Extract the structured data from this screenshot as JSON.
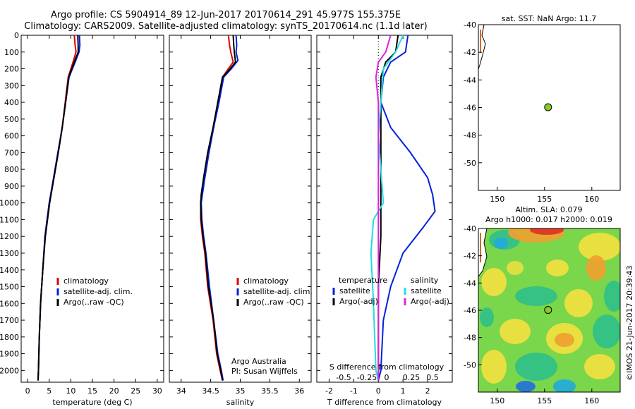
{
  "header": {
    "line1": "Argo profile: CS 5904914_89 12-Jun-2017 20170614_291 45.977S 155.375E",
    "line2": "Climatology: CARS2009. Satellite-adjusted climatology: synTS_20170614.nc (1.1d later)"
  },
  "side_stamp": "©IMOS 21-Jun-2017 20:39:43",
  "colors": {
    "climatology": "#dd0000",
    "satellite": "#0022dd",
    "argo": "#000000",
    "sat_salinity": "#22dddd",
    "argo_adj_salinity": "#dd22dd",
    "marker": "#88cc22"
  },
  "chart_data": [
    {
      "type": "line",
      "id": "temperature",
      "xlabel": "temperature (deg C)",
      "xlim": [
        -1.5,
        31.5
      ],
      "xticks": [
        0,
        5,
        10,
        15,
        20,
        25,
        30
      ],
      "ylim": [
        2070,
        0
      ],
      "yticks": [
        0,
        100,
        200,
        300,
        400,
        500,
        600,
        700,
        800,
        900,
        1000,
        1100,
        1200,
        1300,
        1400,
        1500,
        1600,
        1700,
        1800,
        1900,
        2000
      ],
      "legend": [
        "climatology",
        "satellite-adj. clim.",
        "Argo(..raw -QC)"
      ],
      "series": [
        {
          "name": "climatology",
          "color": "#dd0000",
          "points": [
            [
              10.8,
              0
            ],
            [
              11.0,
              60
            ],
            [
              11.2,
              100
            ],
            [
              10.5,
              160
            ],
            [
              9.4,
              250
            ],
            [
              8.7,
              400
            ],
            [
              8.0,
              550
            ],
            [
              7.1,
              700
            ],
            [
              6.1,
              850
            ],
            [
              5.0,
              1000
            ],
            [
              4.0,
              1200
            ],
            [
              3.5,
              1400
            ],
            [
              3.0,
              1600
            ],
            [
              2.7,
              1800
            ],
            [
              2.5,
              2000
            ],
            [
              2.4,
              2060
            ]
          ]
        },
        {
          "name": "satellite-adj. clim.",
          "color": "#0022dd",
          "points": [
            [
              12.0,
              0
            ],
            [
              12.1,
              60
            ],
            [
              11.9,
              100
            ],
            [
              11.0,
              160
            ],
            [
              9.6,
              250
            ],
            [
              8.8,
              400
            ],
            [
              8.0,
              550
            ],
            [
              7.0,
              700
            ],
            [
              6.0,
              850
            ],
            [
              5.0,
              1000
            ],
            [
              4.0,
              1200
            ],
            [
              3.5,
              1400
            ],
            [
              3.0,
              1600
            ],
            [
              2.7,
              1800
            ],
            [
              2.5,
              2000
            ],
            [
              2.4,
              2060
            ]
          ]
        },
        {
          "name": "Argo(..raw -QC)",
          "color": "#000000",
          "points": [
            [
              11.6,
              0
            ],
            [
              11.7,
              60
            ],
            [
              11.7,
              100
            ],
            [
              10.8,
              160
            ],
            [
              9.5,
              250
            ],
            [
              8.8,
              400
            ],
            [
              8.0,
              550
            ],
            [
              7.1,
              700
            ],
            [
              6.1,
              850
            ],
            [
              5.1,
              1000
            ],
            [
              4.1,
              1200
            ],
            [
              3.5,
              1400
            ],
            [
              3.0,
              1600
            ],
            [
              2.7,
              1800
            ],
            [
              2.5,
              2000
            ],
            [
              2.4,
              2060
            ]
          ]
        }
      ]
    },
    {
      "type": "line",
      "id": "salinity",
      "xlabel": "salinity",
      "xlim": [
        33.8,
        36.2
      ],
      "xticks": [
        34,
        34.5,
        35,
        35.5,
        36
      ],
      "ylim": [
        2070,
        0
      ],
      "legend": [
        "climatology",
        "satellite-adj. clim.",
        "Argo(..raw -QC)"
      ],
      "annotation": [
        "Argo Australia",
        "PI: Susan Wijffels"
      ],
      "series": [
        {
          "name": "climatology",
          "color": "#dd0000",
          "points": [
            [
              34.8,
              0
            ],
            [
              34.82,
              60
            ],
            [
              34.84,
              100
            ],
            [
              34.88,
              160
            ],
            [
              34.8,
              200
            ],
            [
              34.7,
              250
            ],
            [
              34.62,
              400
            ],
            [
              34.55,
              550
            ],
            [
              34.47,
              700
            ],
            [
              34.4,
              850
            ],
            [
              34.35,
              950
            ],
            [
              34.33,
              1000
            ],
            [
              34.33,
              1100
            ],
            [
              34.36,
              1200
            ],
            [
              34.4,
              1300
            ],
            [
              34.45,
              1500
            ],
            [
              34.54,
              1700
            ],
            [
              34.6,
              1900
            ],
            [
              34.66,
              2000
            ],
            [
              34.7,
              2060
            ]
          ]
        },
        {
          "name": "satellite-adj. clim.",
          "color": "#0022dd",
          "points": [
            [
              34.93,
              0
            ],
            [
              34.94,
              60
            ],
            [
              34.93,
              100
            ],
            [
              34.96,
              150
            ],
            [
              34.85,
              200
            ],
            [
              34.72,
              250
            ],
            [
              34.64,
              400
            ],
            [
              34.55,
              550
            ],
            [
              34.47,
              700
            ],
            [
              34.4,
              850
            ],
            [
              34.36,
              950
            ],
            [
              34.34,
              1000
            ],
            [
              34.35,
              1100
            ],
            [
              34.38,
              1200
            ],
            [
              34.42,
              1300
            ],
            [
              34.48,
              1500
            ],
            [
              34.55,
              1700
            ],
            [
              34.62,
              1900
            ],
            [
              34.68,
              2000
            ],
            [
              34.71,
              2060
            ]
          ]
        },
        {
          "name": "Argo(..raw -QC)",
          "color": "#000000",
          "points": [
            [
              34.88,
              0
            ],
            [
              34.89,
              60
            ],
            [
              34.9,
              100
            ],
            [
              34.92,
              160
            ],
            [
              34.83,
              200
            ],
            [
              34.7,
              250
            ],
            [
              34.62,
              400
            ],
            [
              34.54,
              550
            ],
            [
              34.45,
              700
            ],
            [
              34.38,
              850
            ],
            [
              34.34,
              950
            ],
            [
              34.33,
              1000
            ],
            [
              34.34,
              1100
            ],
            [
              34.37,
              1200
            ],
            [
              34.41,
              1300
            ],
            [
              34.46,
              1500
            ],
            [
              34.55,
              1700
            ],
            [
              34.61,
              1900
            ],
            [
              34.67,
              2000
            ],
            [
              34.7,
              2060
            ]
          ]
        }
      ]
    },
    {
      "type": "line",
      "id": "difference",
      "xlabel": "T difference from climatology",
      "xlabel_top": "S difference from climatology",
      "xlim": [
        -2.5,
        3.0
      ],
      "xticks": [
        -2,
        -1,
        0,
        1,
        2
      ],
      "xticks_top": [
        "-0.5",
        "-0.25",
        "0",
        "0.25",
        "0.5"
      ],
      "ylim": [
        2070,
        0
      ],
      "legend_headers": [
        "temperature",
        "salinity"
      ],
      "legend": [
        "satellite",
        "Argo(-adj)",
        "satellite",
        "Argo(-adj)"
      ],
      "series": [
        {
          "name": "temperature satellite",
          "color": "#0022dd",
          "points": [
            [
              1.2,
              0
            ],
            [
              1.1,
              100
            ],
            [
              0.5,
              160
            ],
            [
              0.2,
              250
            ],
            [
              0.1,
              400
            ],
            [
              0.5,
              550
            ],
            [
              1.3,
              700
            ],
            [
              2.0,
              850
            ],
            [
              2.2,
              950
            ],
            [
              2.3,
              1050
            ],
            [
              1.8,
              1150
            ],
            [
              1.0,
              1300
            ],
            [
              0.5,
              1500
            ],
            [
              0.2,
              1700
            ],
            [
              0.1,
              2000
            ],
            [
              0.0,
              2060
            ]
          ]
        },
        {
          "name": "temperature Argo(-adj)",
          "color": "#000000",
          "points": [
            [
              0.8,
              0
            ],
            [
              0.7,
              100
            ],
            [
              0.3,
              160
            ],
            [
              0.1,
              250
            ],
            [
              0.1,
              400
            ],
            [
              0.1,
              600
            ],
            [
              0.1,
              800
            ],
            [
              0.1,
              1000
            ],
            [
              0.1,
              1200
            ],
            [
              0.0,
              1500
            ],
            [
              0.0,
              2060
            ]
          ]
        },
        {
          "name": "salinity satellite",
          "color": "#22dddd",
          "points": [
            [
              1.0,
              0
            ],
            [
              0.7,
              100
            ],
            [
              0.2,
              200
            ],
            [
              0.1,
              400
            ],
            [
              0.0,
              600
            ],
            [
              0.1,
              800
            ],
            [
              0.2,
              1000
            ],
            [
              -0.2,
              1100
            ],
            [
              -0.3,
              1300
            ],
            [
              -0.2,
              1600
            ],
            [
              -0.1,
              2000
            ],
            [
              0.0,
              2060
            ]
          ]
        },
        {
          "name": "salinity Argo(-adj)",
          "color": "#dd22dd",
          "points": [
            [
              0.5,
              0
            ],
            [
              0.3,
              100
            ],
            [
              0.0,
              160
            ],
            [
              -0.1,
              250
            ],
            [
              0.0,
              400
            ],
            [
              0.0,
              600
            ],
            [
              0.0,
              800
            ],
            [
              0.0,
              1000
            ],
            [
              0.0,
              1200
            ],
            [
              0.0,
              1500
            ],
            [
              0.0,
              2060
            ]
          ]
        }
      ]
    },
    {
      "type": "scatter",
      "id": "sst-map",
      "title": "sat. SST: NaN Argo: 11.7",
      "xlim": [
        148,
        163
      ],
      "ylim": [
        -52,
        -40
      ],
      "xticks": [
        150,
        155,
        160
      ],
      "yticks": [
        -40,
        -42,
        -44,
        -46,
        -48,
        -50
      ],
      "points": [
        [
          155.375,
          -45.977
        ]
      ]
    },
    {
      "type": "heatmap",
      "id": "sla-map",
      "title": "Altim. SLA: 0.079",
      "subtitle": "Argo h1000: 0.017 h2000: 0.019",
      "xlim": [
        148,
        163
      ],
      "ylim": [
        -52,
        -40
      ],
      "xticks": [
        150,
        155,
        160
      ],
      "yticks": [
        -40,
        -42,
        -44,
        -46,
        -48,
        -50
      ],
      "points": [
        [
          155.375,
          -45.977
        ]
      ]
    }
  ]
}
